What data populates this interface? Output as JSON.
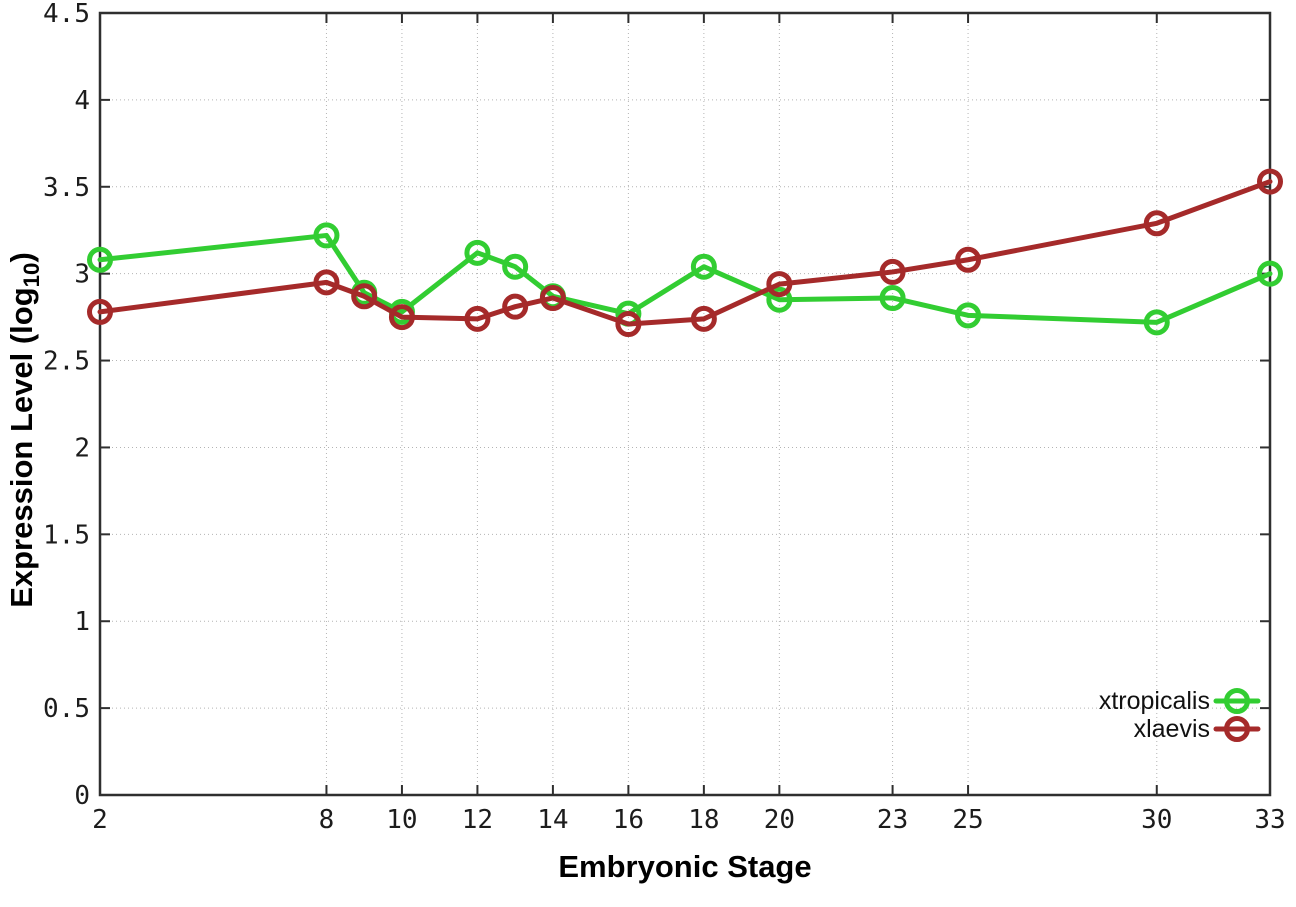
{
  "figure": {
    "xlabel": "Embryonic Stage",
    "ylabel_prefix": "Expression Level (log",
    "ylabel_sub": "10",
    "ylabel_suffix": ")",
    "background": "#ffffff"
  },
  "chart_data": {
    "type": "line",
    "title": "",
    "xlabel": "Embryonic Stage",
    "ylabel": "Expression Level (log10)",
    "xlim": [
      2,
      33
    ],
    "ylim": [
      0,
      4.5
    ],
    "x_ticks": [
      2,
      8,
      10,
      12,
      14,
      16,
      18,
      20,
      23,
      25,
      30,
      33
    ],
    "x_tick_labels": [
      "2",
      "8",
      "10",
      "12",
      "14",
      "16",
      "18",
      "20",
      "23",
      "25",
      "30",
      "33"
    ],
    "y_ticks": [
      0,
      0.5,
      1,
      1.5,
      2,
      2.5,
      3,
      3.5,
      4,
      4.5
    ],
    "y_tick_labels": [
      "0",
      "0.5",
      "1",
      "1.5",
      "2",
      "2.5",
      "3",
      "3.5",
      "4",
      "4.5"
    ],
    "grid": true,
    "grid_style": "dotted",
    "grid_color": "#b4b4b4",
    "axis_color": "#2f2f2f",
    "marker": "open-circle",
    "legend_position": "bottom-right",
    "series": [
      {
        "name": "xtropicalis",
        "color": "#32CD32",
        "x": [
          2,
          8,
          9,
          10,
          12,
          13,
          14,
          16,
          18,
          20,
          23,
          25,
          30,
          33
        ],
        "y": [
          3.08,
          3.22,
          2.89,
          2.78,
          3.12,
          3.04,
          2.87,
          2.77,
          3.04,
          2.85,
          2.86,
          2.76,
          2.72,
          3.0
        ]
      },
      {
        "name": "xlaevis",
        "color": "#A52A2A",
        "x": [
          2,
          8,
          9,
          10,
          12,
          13,
          14,
          16,
          18,
          20,
          23,
          25,
          30,
          33
        ],
        "y": [
          2.78,
          2.95,
          2.87,
          2.75,
          2.74,
          2.81,
          2.86,
          2.71,
          2.74,
          2.94,
          3.01,
          3.08,
          3.29,
          3.53
        ]
      }
    ]
  }
}
